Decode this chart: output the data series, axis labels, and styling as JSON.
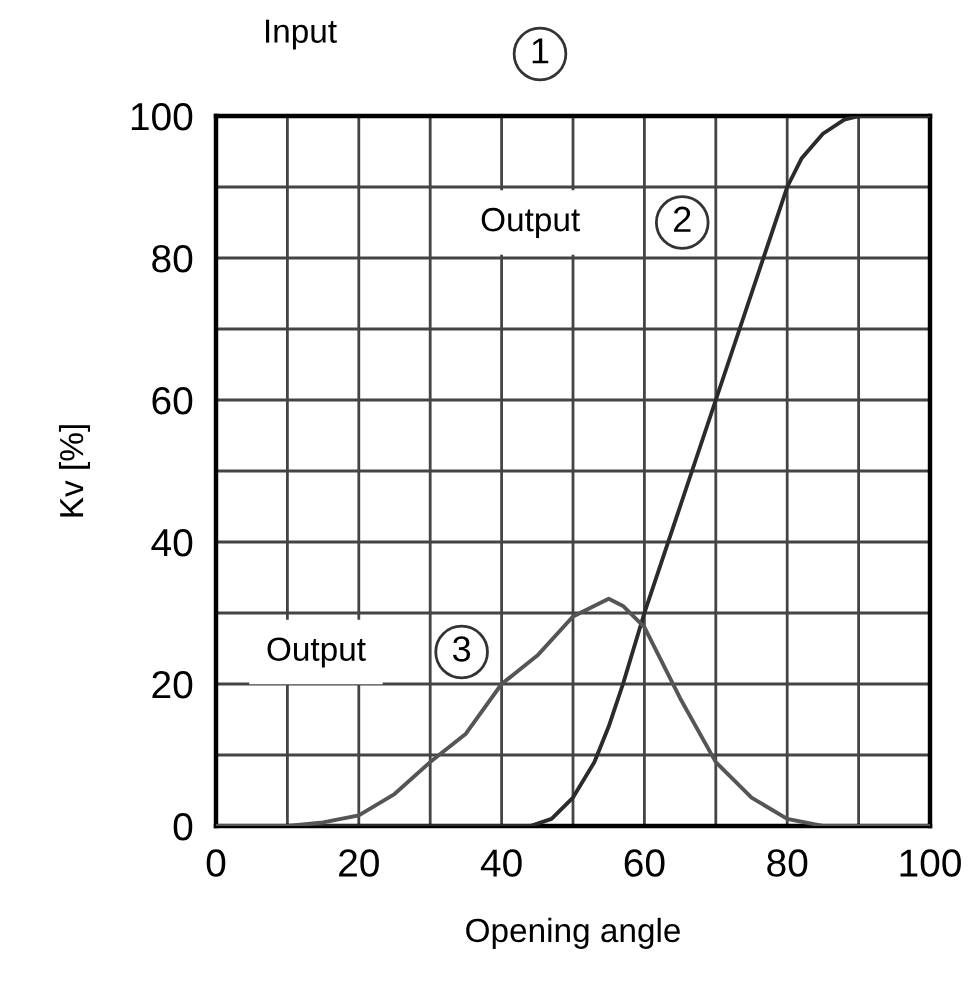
{
  "chart_data": {
    "type": "line",
    "xlabel": "Opening angle",
    "ylabel": "Kv [%]",
    "xlim": [
      0,
      100
    ],
    "ylim": [
      0,
      100
    ],
    "xticks": [
      {
        "value": 0,
        "label": "0"
      },
      {
        "value": 10,
        "label": null
      },
      {
        "value": 20,
        "label": "20"
      },
      {
        "value": 30,
        "label": null
      },
      {
        "value": 40,
        "label": "40"
      },
      {
        "value": 50,
        "label": null
      },
      {
        "value": 60,
        "label": "60"
      },
      {
        "value": 70,
        "label": null
      },
      {
        "value": 80,
        "label": "80"
      },
      {
        "value": 90,
        "label": null
      },
      {
        "value": 100,
        "label": "100"
      }
    ],
    "yticks": [
      {
        "value": 0,
        "label": "0"
      },
      {
        "value": 10,
        "label": null
      },
      {
        "value": 20,
        "label": "20"
      },
      {
        "value": 30,
        "label": null
      },
      {
        "value": 40,
        "label": "40"
      },
      {
        "value": 50,
        "label": null
      },
      {
        "value": 60,
        "label": "60"
      },
      {
        "value": 70,
        "label": null
      },
      {
        "value": 80,
        "label": "80"
      },
      {
        "value": 90,
        "label": null
      },
      {
        "value": 100,
        "label": "100"
      }
    ],
    "grid": true,
    "series": [
      {
        "color": "#2b2b2b",
        "x": [
          0,
          44,
          47,
          50,
          53,
          55,
          57,
          60,
          65,
          70,
          75,
          78,
          80,
          82,
          85,
          88,
          90,
          100
        ],
        "values": [
          0,
          0,
          1,
          4,
          9,
          14,
          20,
          30,
          45,
          60,
          75,
          84,
          90,
          94,
          97.5,
          99.5,
          100,
          100
        ]
      },
      {
        "color": "#555555",
        "x": [
          0,
          10,
          15,
          20,
          25,
          30,
          35,
          40,
          45,
          50,
          55,
          57,
          60,
          65,
          70,
          75,
          80,
          85,
          100
        ],
        "values": [
          0,
          0,
          0.5,
          1.5,
          4.5,
          9,
          13,
          20,
          24,
          29.5,
          32,
          31,
          28,
          18,
          9,
          4,
          1,
          0,
          0
        ]
      }
    ],
    "annotations": [
      "Input",
      "1",
      "Output",
      "2",
      "Output",
      "3"
    ]
  }
}
